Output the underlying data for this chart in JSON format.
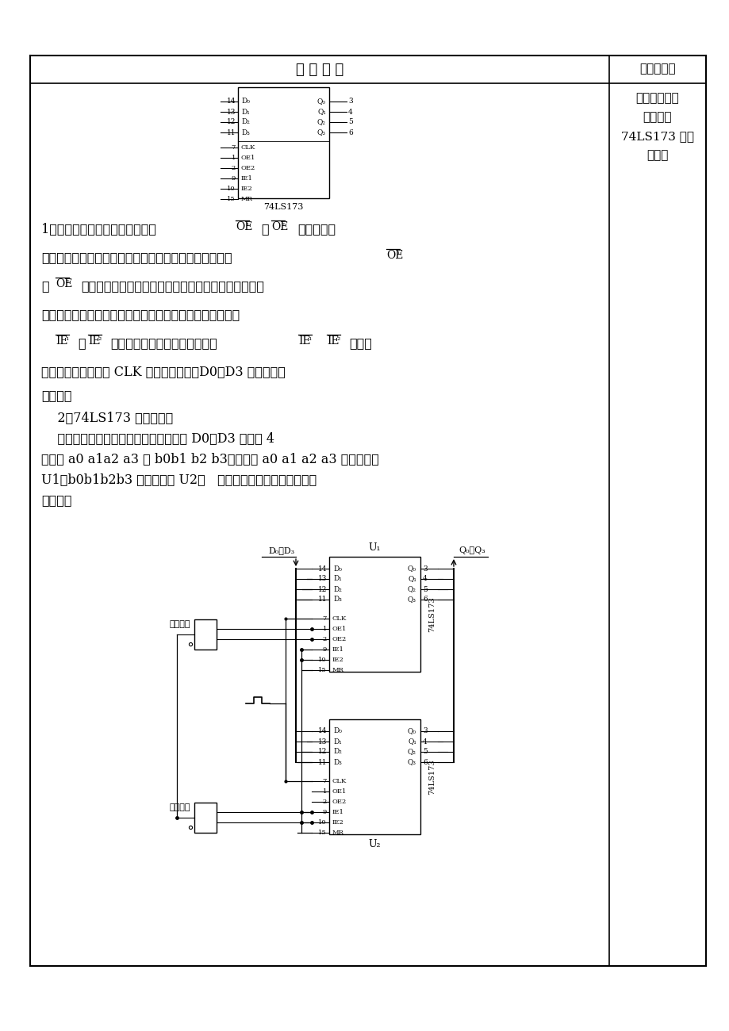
{
  "bg_color": "#ffffff",
  "title_col_text": "教 学 内 容",
  "title_right_text": "板书或旁注",
  "right_notes": [
    "通过一个实际",
    "应用讨论",
    "74LS173 的使",
    "用方法"
  ],
  "para1": "1、功能特点：当三态允许控制端",
  "para2": "时，输出端为正常逻辑状态，可用来驱动负载或总线；当",
  "para3_start": "或",
  "para3_end": "为高电平时，输出呈高阻状态，既不驱动总线，也不是",
  "para4": "总线的负载。此时寄存器的时序操作不受影响。数据选通端",
  "para5_mid": "可控制数据是否进入触发器。当",
  "para5_end": "均为低",
  "para6": "电平时，在时钟脉冲 CLK 上升沿作用下，D0～D3 进入相应的",
  "para7": "触发器。",
  "sec2_title": "    2、74LS173 的使用方法",
  "sec2_p1": "    实际应用电路如下图所示：输入数据线 D0～D3 有两个 4",
  "sec2_p2": "位数据 a0 a1a2 a3 与 b0b1 b2 b3，要求将 a0 a1 a2 a3 存入寄存器",
  "sec2_p3": "U1，b0b1b2b3 存入寄存器 U2，   并在输出数据线上将两个数据",
  "sec2_p4": "分别取出"
}
